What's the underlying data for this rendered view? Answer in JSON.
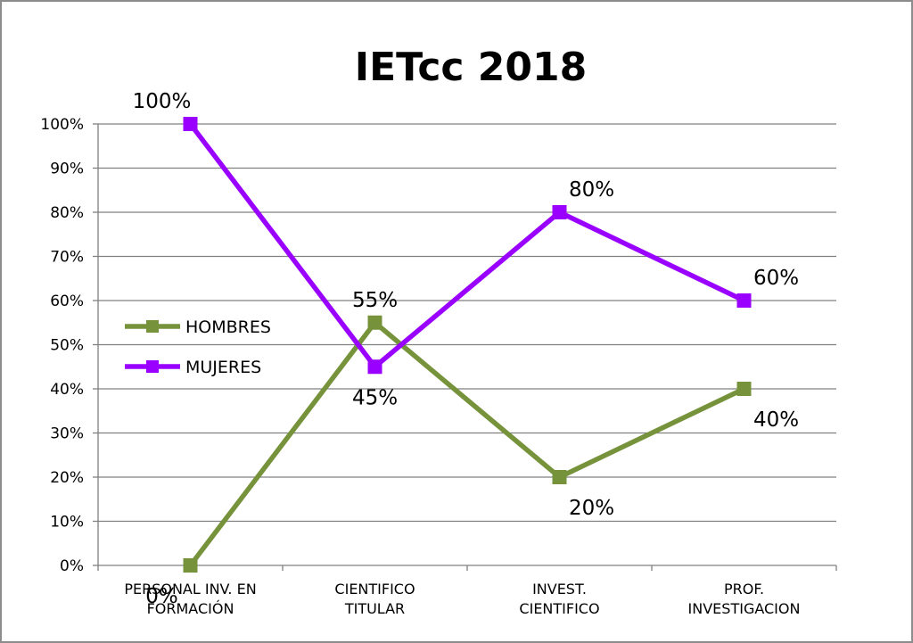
{
  "chart_data": {
    "type": "line",
    "title": "IETcc  2018",
    "xlabel": "",
    "ylabel": "",
    "categories": [
      [
        "PERSONAL INV. EN",
        "FORMACIÓN"
      ],
      [
        "CIENTIFICO",
        "TITULAR"
      ],
      [
        "INVEST.",
        "CIENTIFICO"
      ],
      [
        "PROF.",
        "INVESTIGACION"
      ]
    ],
    "y_ticks": [
      "0%",
      "10%",
      "20%",
      "30%",
      "40%",
      "50%",
      "60%",
      "70%",
      "80%",
      "90%",
      "100%"
    ],
    "ylim": [
      0,
      100
    ],
    "grid": true,
    "legend_position": "left",
    "series": [
      {
        "name": "HOMBRES",
        "color": "#76933c",
        "values": [
          0,
          55,
          20,
          40
        ],
        "labels": [
          "0%",
          "55%",
          "20%",
          "40%"
        ]
      },
      {
        "name": "MUJERES",
        "color": "#9900ff",
        "values": [
          100,
          45,
          80,
          60
        ],
        "labels": [
          "100%",
          "45%",
          "80%",
          "60%"
        ]
      }
    ]
  }
}
